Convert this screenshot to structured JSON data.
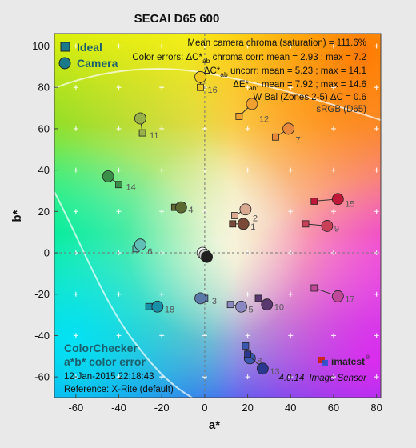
{
  "chart_data": {
    "type": "scatter",
    "title": "SECAI D65 600",
    "xlabel": "a*",
    "ylabel": "b*",
    "xlim": [
      -70,
      82
    ],
    "ylim": [
      -70,
      106
    ],
    "x_ticks": [
      -60,
      -40,
      -20,
      0,
      20,
      40,
      60,
      80
    ],
    "y_ticks": [
      -60,
      -40,
      -20,
      0,
      20,
      40,
      60,
      80,
      100
    ],
    "grid": true,
    "legend": {
      "placement": "top-left",
      "entries": [
        {
          "name": "Ideal",
          "marker": "square",
          "color": "#1a7a8a"
        },
        {
          "name": "Camera",
          "marker": "circle",
          "color": "#1a7a8a"
        }
      ]
    },
    "stats": {
      "mean_chroma": "Mean camera chroma (saturation) = 111.6%",
      "chroma_corr_prefix": "Color errors: ΔC*",
      "chroma_corr_suffix": " chroma corr:  mean = 2.93 ;  max = 7.2",
      "uncorr_prefix": "ΔC*",
      "uncorr_suffix": " uncorr:  mean = 5.23 ;  max = 14.1",
      "delta_e_prefix": "ΔE*",
      "delta_e_suffix": ":  mean = 7.92 ;  max = 14.6",
      "ab_subscript": "ab",
      "white_balance": "W Bal (Zones 2-5) ΔC = 0.6",
      "color_space": "sRGB (D65)"
    },
    "footer": {
      "title_line1": "ColorChecker",
      "title_line2": "a*b* color error",
      "date": "12-Jan-2015 22:18:43",
      "reference": "Reference: X-Rite (default)",
      "version": "4.0.14",
      "product": "Image Sensor",
      "logo_text": "imatest",
      "logo_mark": "®"
    },
    "patches": [
      {
        "label": "1",
        "ideal": [
          13,
          14
        ],
        "camera": [
          18,
          14
        ],
        "color": "#7a4a38"
      },
      {
        "label": "2",
        "ideal": [
          14,
          18
        ],
        "camera": [
          19,
          21
        ],
        "color": "#d8a890"
      },
      {
        "label": "3",
        "ideal": [
          0,
          -22
        ],
        "camera": [
          -2,
          -22
        ],
        "color": "#5a78a8"
      },
      {
        "label": "4",
        "ideal": [
          -14,
          22
        ],
        "camera": [
          -11,
          22
        ],
        "color": "#5a6a30"
      },
      {
        "label": "5",
        "ideal": [
          12,
          -25
        ],
        "camera": [
          17,
          -26
        ],
        "color": "#8a88c0"
      },
      {
        "label": "6",
        "ideal": [
          -32,
          2
        ],
        "camera": [
          -30,
          4
        ],
        "color": "#60c0b8"
      },
      {
        "label": "7",
        "ideal": [
          33,
          56
        ],
        "camera": [
          39,
          60
        ],
        "color": "#e8883a"
      },
      {
        "label": "8",
        "ideal": [
          19,
          -45
        ],
        "camera": [
          21,
          -51
        ],
        "color": "#3a58b0"
      },
      {
        "label": "9",
        "ideal": [
          47,
          14
        ],
        "camera": [
          57,
          13
        ],
        "color": "#c84058"
      },
      {
        "label": "10",
        "ideal": [
          25,
          -22
        ],
        "camera": [
          29,
          -25
        ],
        "color": "#5a3870"
      },
      {
        "label": "11",
        "ideal": [
          -29,
          58
        ],
        "camera": [
          -30,
          65
        ],
        "color": "#98b048"
      },
      {
        "label": "12",
        "ideal": [
          16,
          66
        ],
        "camera": [
          22,
          72
        ],
        "color": "#f0a030"
      },
      {
        "label": "13",
        "ideal": [
          20,
          -49
        ],
        "camera": [
          27,
          -56
        ],
        "color": "#2a3890"
      },
      {
        "label": "14",
        "ideal": [
          -40,
          33
        ],
        "camera": [
          -45,
          37
        ],
        "color": "#3a9048"
      },
      {
        "label": "15",
        "ideal": [
          51,
          25
        ],
        "camera": [
          62,
          26
        ],
        "color": "#c01838"
      },
      {
        "label": "16",
        "ideal": [
          -2,
          80
        ],
        "camera": [
          -2,
          85
        ],
        "color": "#f0c820"
      },
      {
        "label": "17",
        "ideal": [
          51,
          -17
        ],
        "camera": [
          62,
          -21
        ],
        "color": "#c04898"
      },
      {
        "label": "18",
        "ideal": [
          -26,
          -26
        ],
        "camera": [
          -22,
          -26
        ],
        "color": "#1890a8"
      }
    ],
    "neutrals": [
      {
        "label": "",
        "x": -1,
        "y": 0,
        "color": "#f4f4f4"
      },
      {
        "label": "",
        "x": 0,
        "y": -1,
        "color": "#c8c8c8"
      },
      {
        "label": "",
        "x": 1,
        "y": -2,
        "color": "#202020"
      }
    ]
  }
}
